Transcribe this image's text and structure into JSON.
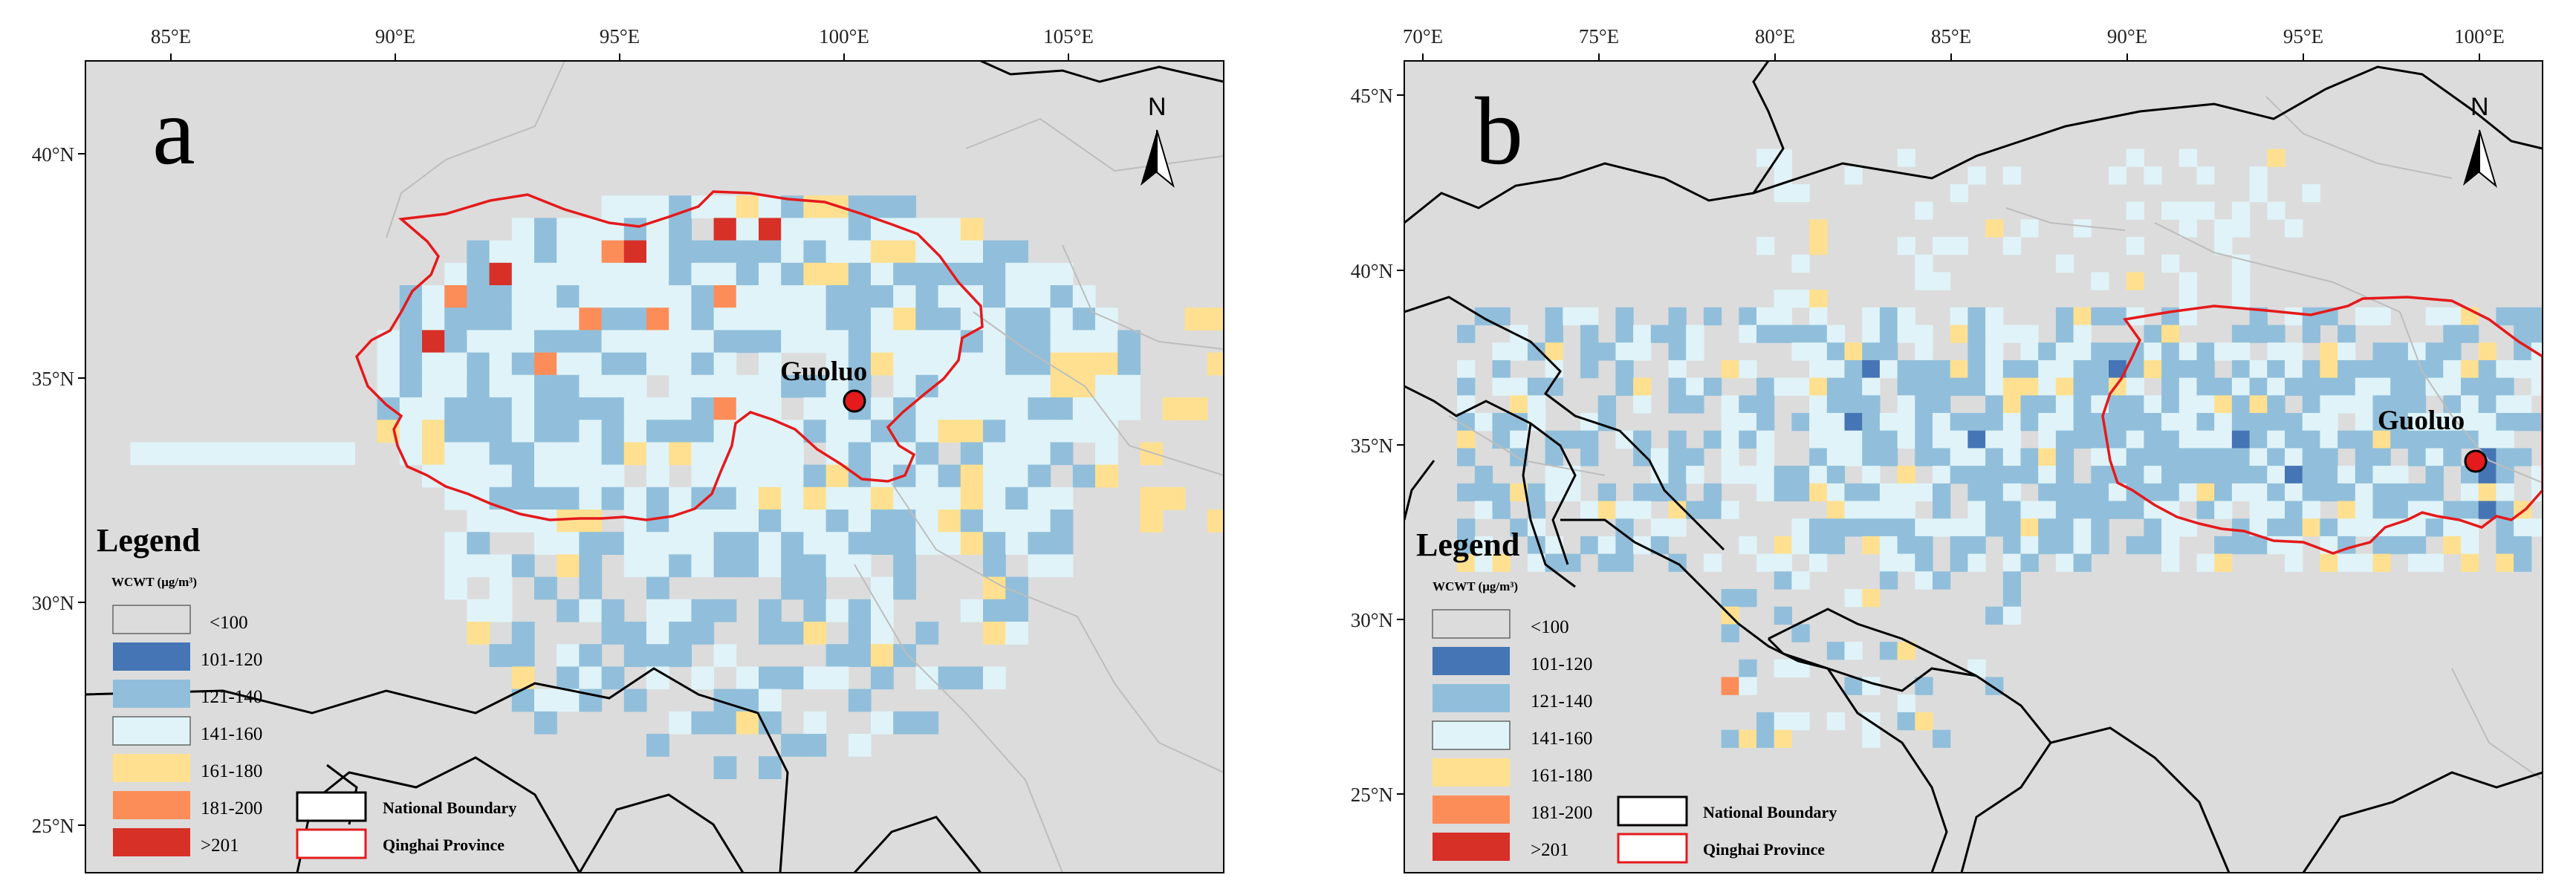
{
  "panels": [
    {
      "letter": "a",
      "x_ticks": [
        "85°E",
        "90°E",
        "95°E",
        "100°E",
        "105°E"
      ],
      "y_ticks": [
        "40°N",
        "35°N",
        "30°N",
        "25°N"
      ],
      "place_label": "Guoluo",
      "north_label": "N"
    },
    {
      "letter": "b",
      "x_ticks": [
        "70°E",
        "75°E",
        "80°E",
        "85°E",
        "90°E",
        "95°E",
        "100°E"
      ],
      "y_ticks": [
        "45°N",
        "40°N",
        "35°N",
        "30°N",
        "25°N"
      ],
      "place_label": "Guoluo",
      "north_label": "N"
    }
  ],
  "legend": {
    "title": "Legend",
    "subtitle": "WCWT (μg/m³)",
    "classes": [
      {
        "label": "<100",
        "color": "#dcdcdc"
      },
      {
        "label": "101-120",
        "color": "#4575b4"
      },
      {
        "label": "121-140",
        "color": "#91bfdb"
      },
      {
        "label": "141-160",
        "color": "#e0f3f8"
      },
      {
        "label": "161-180",
        "color": "#fee090"
      },
      {
        "label": "181-200",
        "color": "#fc8d59"
      },
      {
        "label": ">201",
        "color": "#d73027"
      }
    ],
    "boundaries": [
      {
        "label": "National Boundary",
        "color": "#000000"
      },
      {
        "label": "Qinghai Province",
        "color": "#e41a1c"
      }
    ]
  },
  "colors": {
    "map_background": "#dcdcdc",
    "province_outline": "#e41a1c",
    "national_boundary": "#000000",
    "internal_boundary": "#bdbdbd",
    "point_marker": "#e41a1c"
  }
}
